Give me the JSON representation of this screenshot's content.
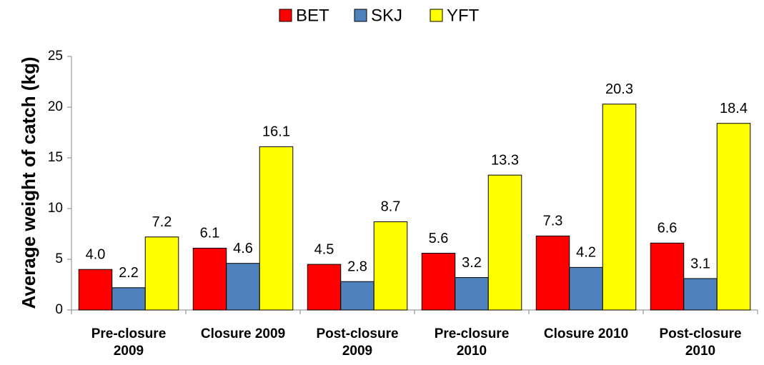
{
  "chart_data": {
    "type": "bar",
    "y_label": "Average weight of catch (kg)",
    "categories": [
      "Pre-closure\n2009",
      "Closure 2009",
      "Post-closure\n2009",
      "Pre-closure\n2010",
      "Closure 2010",
      "Post-closure\n2010"
    ],
    "series": [
      {
        "name": "BET",
        "color": "#ff0000",
        "values": [
          4.0,
          6.1,
          4.5,
          5.6,
          7.3,
          6.6
        ],
        "value_labels": [
          "4.0",
          "6.1",
          "4.5",
          "5.6",
          "7.3",
          "6.6"
        ]
      },
      {
        "name": "SKJ",
        "color": "#4f81bd",
        "values": [
          2.2,
          4.6,
          2.8,
          3.2,
          4.2,
          3.1
        ],
        "value_labels": [
          "2.2",
          "4.6",
          "2.8",
          "3.2",
          "4.2",
          "3.1"
        ]
      },
      {
        "name": "YFT",
        "color": "#ffff00",
        "values": [
          7.2,
          16.1,
          8.7,
          13.3,
          20.3,
          18.4
        ],
        "value_labels": [
          "7.2",
          "16.1",
          "8.7",
          "13.3",
          "20.3",
          "18.4"
        ]
      }
    ],
    "ylim": [
      0,
      25
    ],
    "yticks": [
      0,
      5,
      10,
      15,
      20,
      25
    ],
    "legend": "top"
  }
}
